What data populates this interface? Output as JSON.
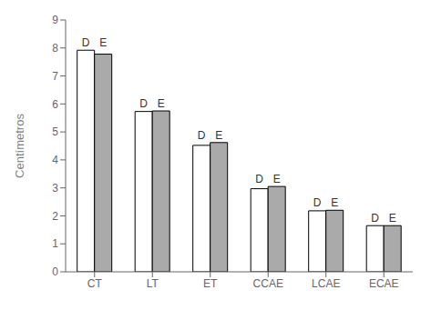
{
  "chart_data": {
    "type": "bar",
    "ylabel": "Centímetros",
    "categories": [
      "CT",
      "LT",
      "ET",
      "CCAE",
      "LCAE",
      "ECAE"
    ],
    "series": [
      {
        "name": "D",
        "color": "#ffffff",
        "values": [
          7.92,
          5.73,
          4.52,
          2.97,
          2.18,
          1.65
        ]
      },
      {
        "name": "E",
        "color": "#aaaaaa",
        "values": [
          7.78,
          5.75,
          4.62,
          3.05,
          2.2,
          1.65
        ]
      }
    ],
    "ylim": [
      0,
      9
    ],
    "yticks": [
      0,
      1,
      2,
      3,
      4,
      5,
      6,
      7,
      8,
      9
    ]
  }
}
